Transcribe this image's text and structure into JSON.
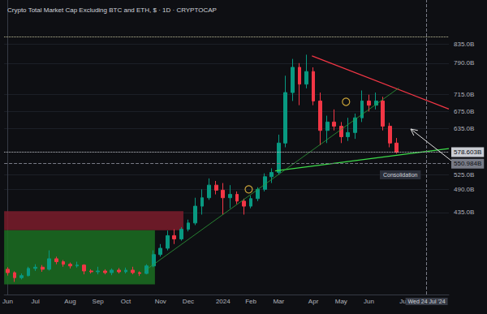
{
  "chart_data": {
    "type": "candlestick",
    "title": "Crypto Total Market Cap Excluding BTC and ETH, $ · 1D · CRYPTOCAP",
    "categories": [
      "Jun",
      null,
      null,
      null,
      "Jul",
      null,
      null,
      null,
      null,
      "Aug",
      null,
      null,
      null,
      "Sep",
      null,
      null,
      null,
      "Oct",
      null,
      null,
      null,
      null,
      "Nov",
      null,
      null,
      null,
      "Dec",
      null,
      null,
      null,
      null,
      "2024",
      null,
      null,
      null,
      "Feb",
      null,
      null,
      null,
      "Mar",
      null,
      null,
      null,
      null,
      "Apr",
      null,
      null,
      null,
      "May",
      null,
      null,
      null,
      "Jun",
      null,
      null,
      null,
      null,
      "Jul",
      null,
      null,
      null,
      null,
      null,
      null
    ],
    "open": [
      300,
      292,
      280,
      285,
      302,
      305,
      300,
      325,
      318,
      312,
      308,
      310,
      296,
      294,
      296,
      292,
      298,
      294,
      298,
      292,
      290,
      308,
      335,
      350,
      380,
      372,
      395,
      410,
      450,
      470,
      500,
      488,
      470,
      478,
      462,
      450,
      468,
      490,
      520,
      530,
      600,
      720,
      780,
      740,
      770,
      700,
      630,
      650,
      640,
      615,
      625,
      660,
      700,
      690,
      700,
      640,
      600,
      null,
      null,
      null,
      null,
      null,
      null,
      null
    ],
    "close": [
      292,
      280,
      285,
      302,
      305,
      300,
      325,
      318,
      312,
      308,
      310,
      296,
      294,
      296,
      292,
      298,
      294,
      298,
      292,
      290,
      308,
      335,
      350,
      380,
      372,
      395,
      410,
      450,
      470,
      500,
      488,
      470,
      478,
      462,
      450,
      468,
      490,
      520,
      530,
      600,
      720,
      780,
      740,
      770,
      700,
      630,
      650,
      640,
      615,
      625,
      660,
      700,
      690,
      700,
      640,
      600,
      578.603,
      null,
      null,
      null,
      null,
      null,
      null,
      null
    ],
    "low": [
      285,
      270,
      276,
      283,
      296,
      294,
      297,
      312,
      306,
      302,
      304,
      288,
      290,
      288,
      288,
      286,
      290,
      290,
      288,
      284,
      288,
      305,
      330,
      345,
      360,
      368,
      390,
      405,
      430,
      465,
      478,
      430,
      445,
      455,
      430,
      445,
      462,
      485,
      505,
      525,
      590,
      700,
      690,
      730,
      690,
      595,
      600,
      630,
      600,
      605,
      610,
      650,
      675,
      680,
      630,
      590,
      575,
      null,
      null,
      null,
      null,
      null,
      null,
      null
    ],
    "high": [
      305,
      295,
      290,
      306,
      312,
      310,
      345,
      330,
      322,
      316,
      318,
      312,
      300,
      306,
      300,
      302,
      303,
      304,
      306,
      295,
      312,
      345,
      360,
      392,
      395,
      400,
      418,
      470,
      490,
      516,
      510,
      505,
      500,
      485,
      468,
      475,
      495,
      528,
      540,
      620,
      760,
      800,
      790,
      810,
      780,
      720,
      665,
      680,
      650,
      660,
      670,
      725,
      715,
      720,
      710,
      648,
      612,
      null,
      null,
      null,
      null,
      null,
      null,
      null
    ],
    "ylim": [
      240,
      940
    ],
    "yticks": [
      {
        "value": 435,
        "label": "435.0B"
      },
      {
        "value": 490,
        "label": "490.0B"
      },
      {
        "value": 525,
        "label": "525.0B"
      },
      {
        "value": 635,
        "label": "635.0B"
      },
      {
        "value": 675,
        "label": "675.0B"
      },
      {
        "value": 715,
        "label": "715.0B"
      },
      {
        "value": 790,
        "label": "790.0B"
      },
      {
        "value": 835,
        "label": "835.0B"
      }
    ],
    "grid": true,
    "lines": [
      {
        "color": "#f23645",
        "points": [
          [
            43.8,
            807
          ],
          [
            63.5,
            681
          ]
        ]
      },
      {
        "color": "#3ddc4a",
        "points": [
          [
            38.5,
            534
          ],
          [
            63.5,
            587
          ]
        ]
      },
      {
        "color": "#2e9e3a",
        "points": [
          [
            19.7,
            296
          ],
          [
            56.3,
            731
          ]
        ]
      }
    ],
    "zones": [
      {
        "color": "#7a1c2b",
        "x": [
          -0.5,
          25.3
        ],
        "y": [
          393,
          438
        ]
      },
      {
        "color": "#1b6e22",
        "x": [
          -0.5,
          21.2
        ],
        "y": [
          264,
          393
        ]
      }
    ],
    "markers": [
      {
        "color": "#f5c542",
        "marker": "circle",
        "x": 34.7,
        "y": 490
      },
      {
        "color": "#f5c542",
        "marker": "circle",
        "x": 48.7,
        "y": 698
      }
    ],
    "levels": [
      {
        "value": 578.603,
        "label": "578.603B",
        "line_style": "dotted",
        "color": "#c9ccd3"
      },
      {
        "value": 550.984,
        "label": "550.984B",
        "line_style": "dashed",
        "color": "#787b86"
      },
      {
        "value": 852,
        "line_style": "dotted",
        "color": "#c8c8a0"
      }
    ],
    "crosshair": {
      "x": 60.3,
      "label": "Wed 24 Jul '24"
    },
    "annotation": "Consolidation"
  }
}
